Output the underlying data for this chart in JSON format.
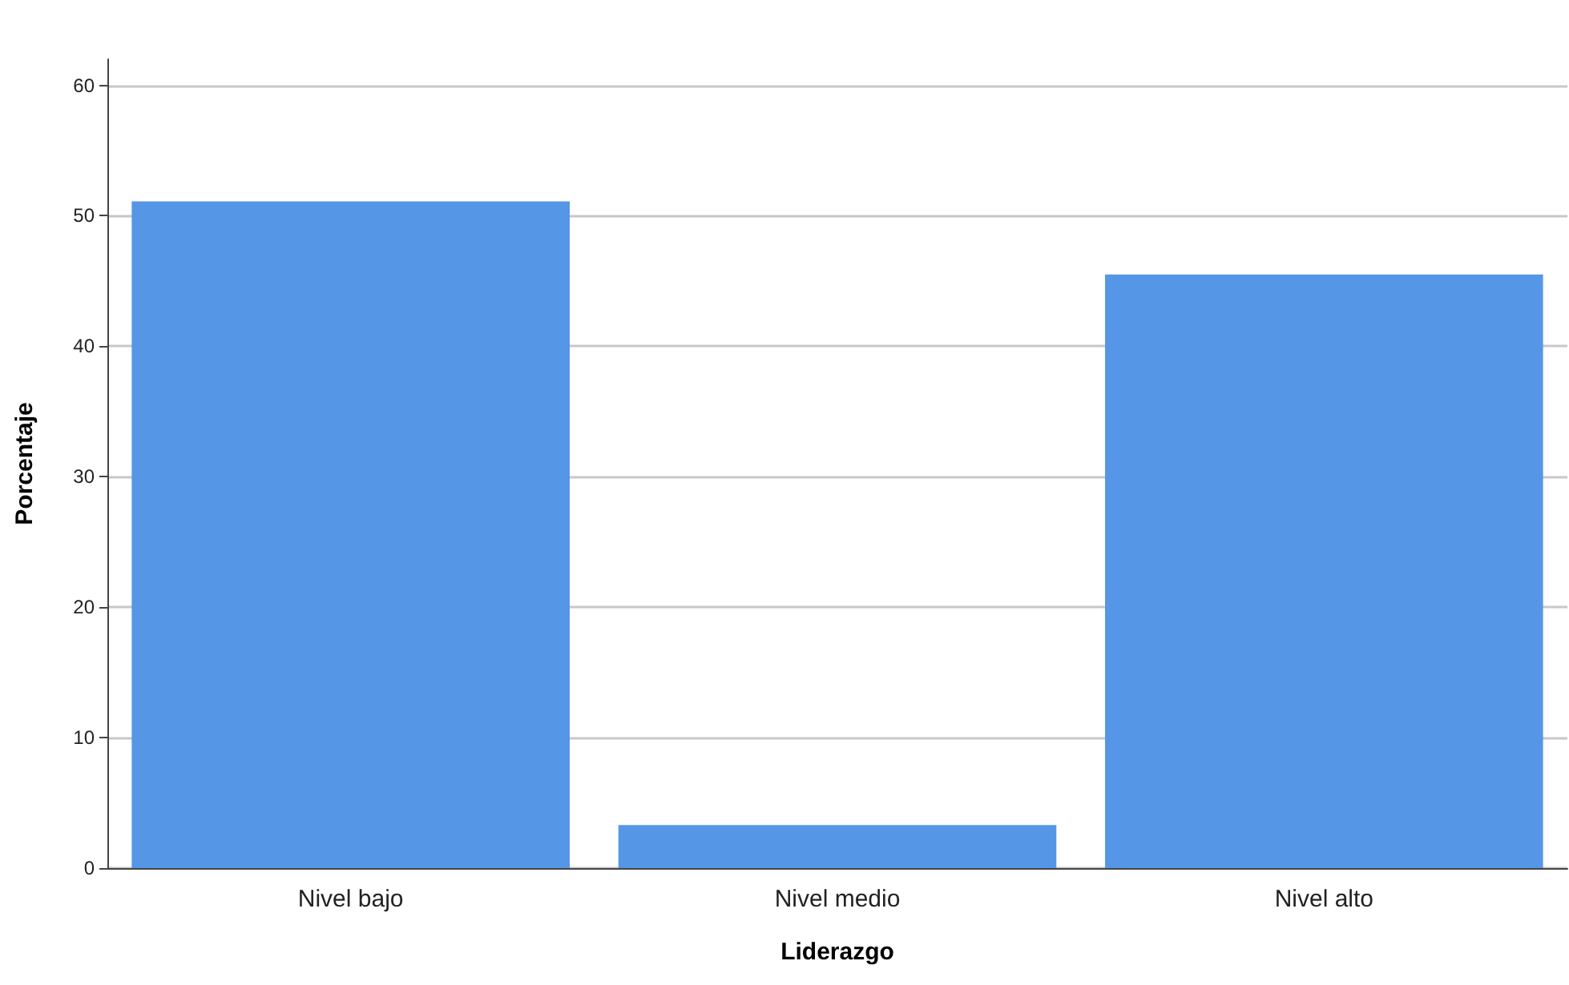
{
  "chart_data": {
    "type": "bar",
    "xlabel": "Liderazgo",
    "ylabel": "Porcentaje",
    "categories": [
      "Nivel bajo",
      "Nivel medio",
      "Nivel alto"
    ],
    "values": [
      51.1,
      3.3,
      45.5
    ],
    "color": "#5596e6",
    "ylim": [
      0,
      62
    ],
    "yticks": [
      0,
      10,
      20,
      30,
      40,
      50,
      60
    ],
    "grid": "y"
  }
}
